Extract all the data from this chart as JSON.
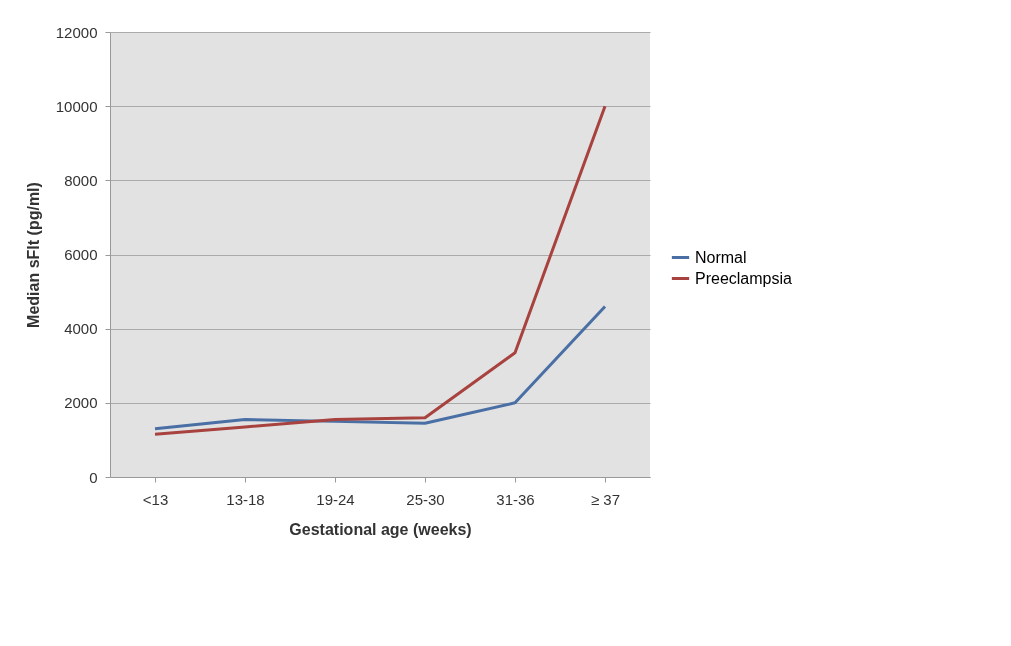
{
  "chart_data": {
    "type": "line",
    "xlabel": "Gestational age (weeks)",
    "ylabel": "Median sFlt (pg/ml)",
    "categories": [
      "<13",
      "13-18",
      "19-24",
      "25-30",
      "31-36",
      "≥ 37"
    ],
    "series": [
      {
        "name": "Normal",
        "color": "#4a6fa5",
        "values": [
          1300,
          1550,
          1500,
          1450,
          2000,
          4600
        ]
      },
      {
        "name": "Preeclampsia",
        "color": "#a8423f",
        "values": [
          1150,
          1350,
          1550,
          1600,
          3350,
          10000
        ]
      }
    ],
    "ylim": [
      0,
      12000
    ],
    "yticks": [
      0,
      2000,
      4000,
      6000,
      8000,
      10000,
      12000
    ],
    "grid": "y",
    "legend": "right",
    "marker": "none",
    "line_style": "solid"
  }
}
